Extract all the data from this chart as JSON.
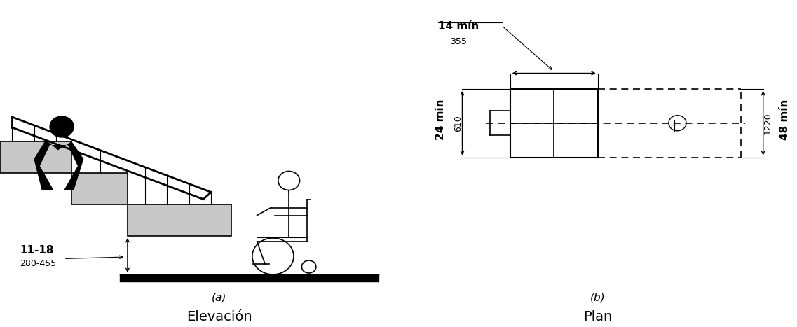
{
  "fig_width": 11.37,
  "fig_height": 4.67,
  "bg_color": "#ffffff",
  "label_a": "(a)",
  "label_b": "(b)",
  "title_a": "Elevación",
  "title_b": "Plan",
  "dim_11_18": "11-18",
  "dim_280_455": "280-455",
  "dim_14_min": "14 mín",
  "dim_355": "355",
  "dim_24_min": "24 min",
  "dim_610": "610",
  "dim_48_min": "48 mín",
  "dim_1220": "1220"
}
